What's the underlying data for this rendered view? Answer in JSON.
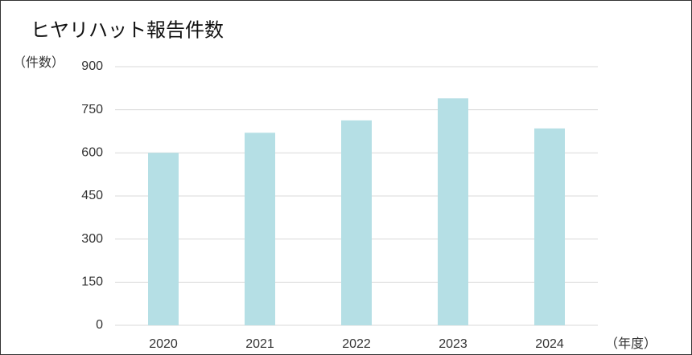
{
  "chart_data": {
    "type": "bar",
    "title": "ヒヤリハット報告件数",
    "y_label": "（件数）",
    "x_label": "（年度）",
    "categories": [
      "2020",
      "2021",
      "2022",
      "2023",
      "2024"
    ],
    "values": [
      600,
      670,
      713,
      790,
      685
    ],
    "color": "#b5dfe5",
    "ylim": [
      0,
      900
    ],
    "yticks": [
      0,
      150,
      300,
      450,
      600,
      750,
      900
    ],
    "grid": true
  }
}
